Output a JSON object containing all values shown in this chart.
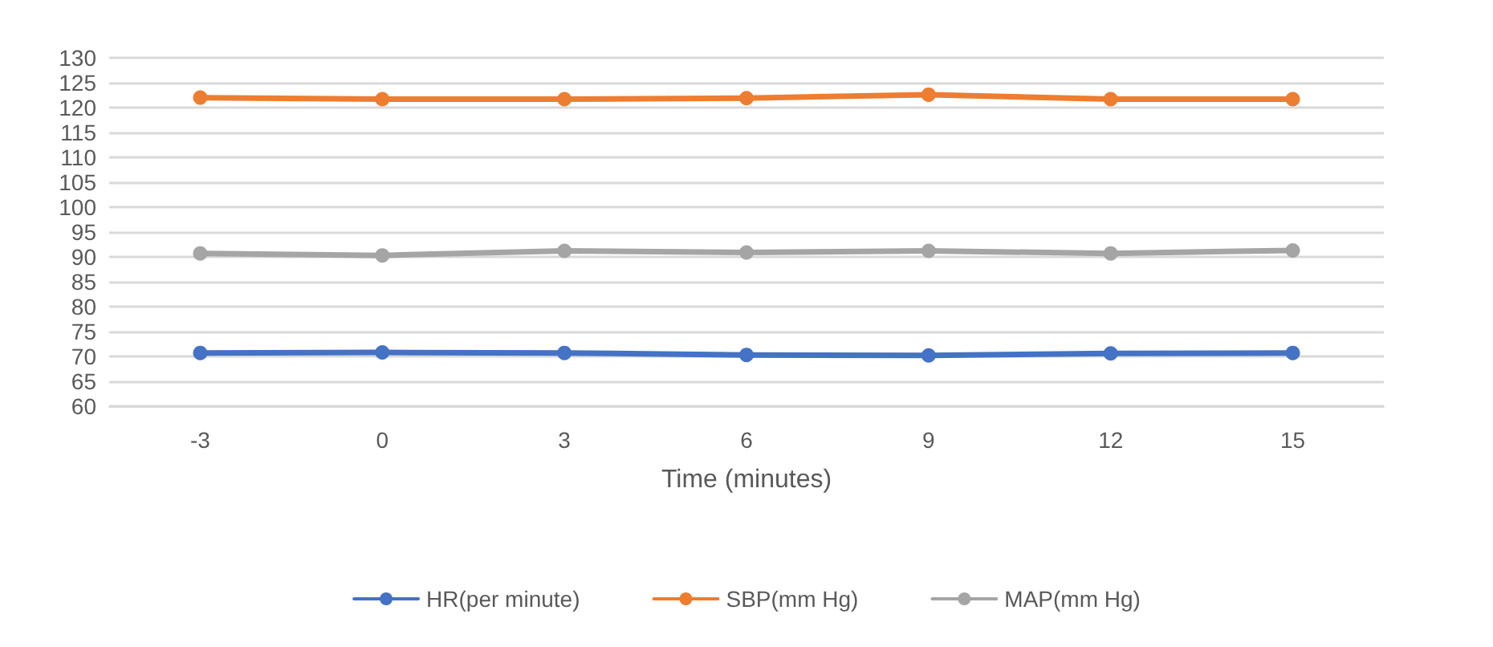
{
  "chart_data": {
    "type": "line",
    "xlabel": "Time (minutes)",
    "categories": [
      "-3",
      "0",
      "3",
      "6",
      "9",
      "12",
      "15"
    ],
    "series": [
      {
        "name": "HR(per minute)",
        "color": "#4472c4",
        "values": [
          70.7,
          70.8,
          70.7,
          70.3,
          70.2,
          70.6,
          70.7
        ]
      },
      {
        "name": "SBP(mm Hg)",
        "color": "#ed7d31",
        "values": [
          122,
          121.7,
          121.7,
          121.9,
          122.6,
          121.7,
          121.7
        ]
      },
      {
        "name": "MAP(mm Hg)",
        "color": "#a5a5a5",
        "values": [
          90.7,
          90.3,
          91.2,
          90.9,
          91.2,
          90.7,
          91.3
        ]
      }
    ],
    "ylim": [
      60,
      130
    ],
    "yticks": [
      60,
      65,
      70,
      75,
      80,
      85,
      90,
      95,
      100,
      105,
      110,
      115,
      120,
      125,
      130
    ],
    "grid": "y",
    "legend": "bottom",
    "marker": "circle",
    "line_style": "solid"
  }
}
